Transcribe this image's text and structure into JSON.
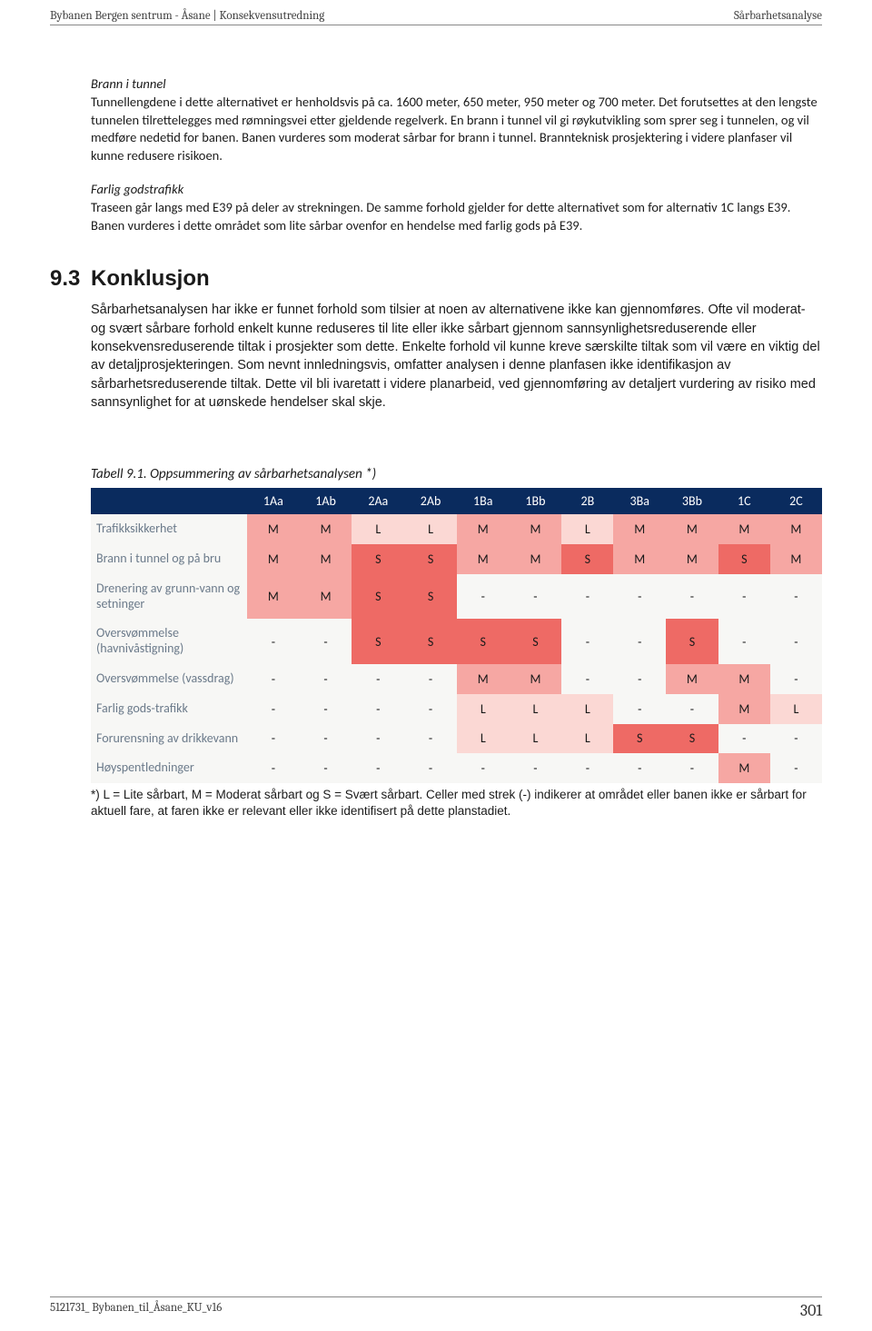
{
  "header": {
    "left": "Bybanen Bergen sentrum - Åsane | Konsekvensutredning",
    "right": "Sårbarhetsanalyse"
  },
  "footer": {
    "left": "5121731_ Bybanen_til_Åsane_KU_v16",
    "page": "301"
  },
  "sections": {
    "brann_heading": "Brann i tunnel",
    "brann_body": "Tunnellengdene i dette alternativet er henholdsvis på ca. 1600 meter, 650 meter, 950 meter og 700 meter. Det forutsettes at den lengste tunnelen tilrettelegges med rømningsvei etter gjeldende regelverk. En brann i tunnel vil gi røykutvikling som sprer seg i tunnelen, og vil medføre nedetid for banen. Banen vurderes som moderat sårbar for brann i tunnel. Brannteknisk prosjektering i videre planfaser vil kunne redusere risikoen.",
    "farlig_heading": "Farlig godstrafikk",
    "farlig_body": "Traseen går langs med E39 på deler av strekningen. De samme forhold gjelder for dette alternativet som for alternativ 1C langs E39. Banen vurderes i dette området som lite sårbar ovenfor en hendelse med farlig gods på E39.",
    "konklusjon_num": "9.3",
    "konklusjon_title": "Konklusjon",
    "konklusjon_body": "Sårbarhetsanalysen har ikke er funnet forhold som tilsier at noen av alternativene ikke kan gjennomføres. Ofte vil moderat- og svært sårbare forhold enkelt kunne reduseres til lite eller ikke sårbart gjennom sannsynlighetsreduserende eller konsekvensreduserende tiltak i prosjekter som dette. Enkelte forhold vil kunne kreve særskilte tiltak som vil være en viktig del av detaljprosjekteringen. Som nevnt innledningsvis, omfatter analysen i denne planfasen ikke identifikasjon av sårbarhetsreduserende tiltak. Dette vil bli ivaretatt i videre planarbeid, ved gjennomføring av detaljert vurdering av risiko med sannsynlighet for at uønskede hendelser skal skje."
  },
  "table": {
    "caption": "Tabell 9.1. Oppsummering av sårbarhetsanalysen *)",
    "columns": [
      "1Aa",
      "1Ab",
      "2Aa",
      "2Ab",
      "1Ba",
      "1Bb",
      "2B",
      "3Ba",
      "3Bb",
      "1C",
      "2C"
    ],
    "rows": [
      {
        "label": "Trafikksikkerhet",
        "cells": [
          "M",
          "M",
          "L",
          "L",
          "M",
          "M",
          "L",
          "M",
          "M",
          "M",
          "M"
        ]
      },
      {
        "label": "Brann i tunnel og på bru",
        "cells": [
          "M",
          "M",
          "S",
          "S",
          "M",
          "M",
          "S",
          "M",
          "M",
          "S",
          "M"
        ]
      },
      {
        "label": "Drenering av grunn-vann og setninger",
        "cells": [
          "M",
          "M",
          "S",
          "S",
          "-",
          "-",
          "-",
          "-",
          "-",
          "-",
          "-"
        ]
      },
      {
        "label": "Oversvømmelse (havnivåstigning)",
        "cells": [
          "-",
          "-",
          "S",
          "S",
          "S",
          "S",
          "-",
          "-",
          "S",
          "-",
          "-"
        ]
      },
      {
        "label": "Oversvømmelse (vassdrag)",
        "cells": [
          "-",
          "-",
          "-",
          "-",
          "M",
          "M",
          "-",
          "-",
          "M",
          "M",
          "-"
        ]
      },
      {
        "label": "Farlig gods-trafikk",
        "cells": [
          "-",
          "-",
          "-",
          "-",
          "L",
          "L",
          "L",
          "-",
          "-",
          "M",
          "L"
        ]
      },
      {
        "label": "Forurensning av drikkevann",
        "cells": [
          "-",
          "-",
          "-",
          "-",
          "L",
          "L",
          "L",
          "S",
          "S",
          "-",
          "-"
        ]
      },
      {
        "label": "Høyspentledninger",
        "cells": [
          "-",
          "-",
          "-",
          "-",
          "-",
          "-",
          "-",
          "-",
          "-",
          "M",
          "-"
        ]
      }
    ],
    "footnote": "*) L = Lite sårbart, M = Moderat sårbart og S = Svært sårbart. Celler med strek (-) indikerer at området eller banen ikke er sårbart for aktuell fare, at faren ikke er relevant eller ikke identifisert på dette planstadiet.",
    "colors": {
      "L": "#fbd8d4",
      "M": "#f6a7a3",
      "S": "#ee6a65",
      "-": "#f7f7f5",
      "header_bg": "#0a2b5e",
      "rowlabel_bg": "#f7f7f5",
      "rowlabel_fg": "#6b7a8a"
    }
  }
}
